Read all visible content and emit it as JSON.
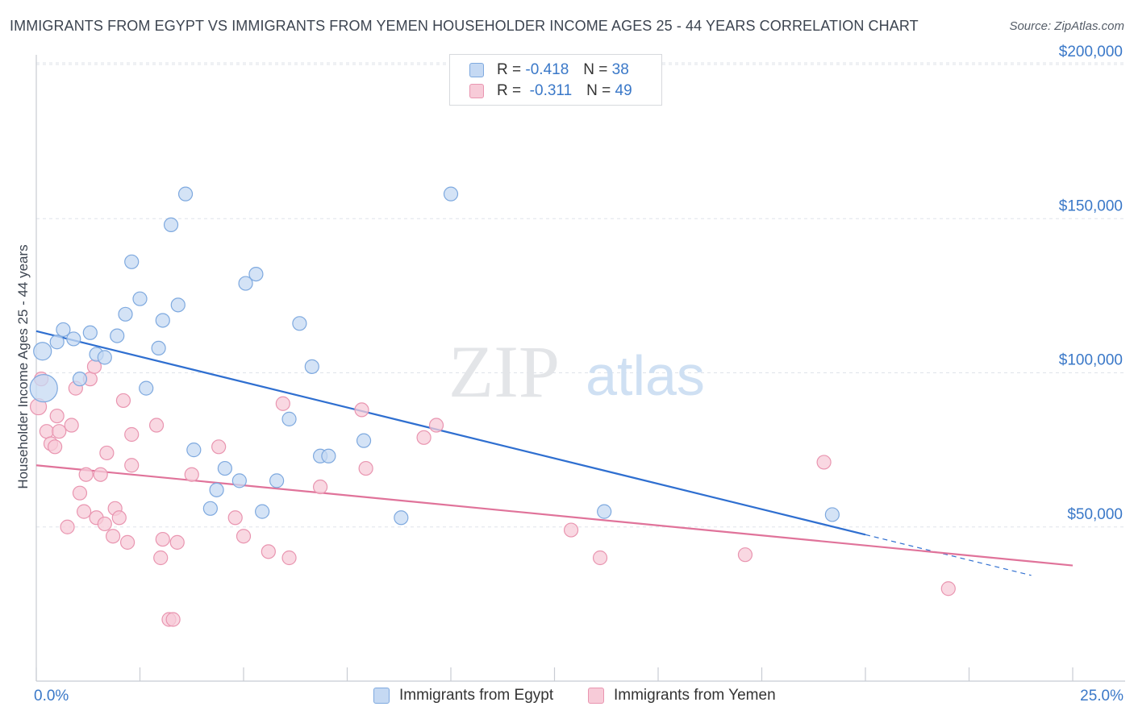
{
  "title": "IMMIGRANTS FROM EGYPT VS IMMIGRANTS FROM YEMEN HOUSEHOLDER INCOME AGES 25 - 44 YEARS CORRELATION CHART",
  "source": "Source: ZipAtlas.com",
  "watermark": {
    "zip": "ZIP",
    "atlas": "atlas"
  },
  "legend_top": [
    {
      "r_label": "R =",
      "r_value": "-0.418",
      "n_label": "N =",
      "n_value": "38"
    },
    {
      "r_label": "R =",
      "r_value": "-0.311",
      "n_label": "N =",
      "n_value": "49"
    }
  ],
  "legend_bottom": [
    {
      "label": "Immigrants from Egypt"
    },
    {
      "label": "Immigrants from Yemen"
    }
  ],
  "colors": {
    "egypt_fill": "#c5d9f3",
    "egypt_stroke": "#7ea9df",
    "egypt_line": "#2f6fd0",
    "yemen_fill": "#f7cbd8",
    "yemen_stroke": "#e995b0",
    "yemen_line": "#e0739a",
    "axis_text": "#3a78c8",
    "grid": "#dfe3ea"
  },
  "chart_data": {
    "type": "scatter",
    "title": "IMMIGRANTS FROM EGYPT VS IMMIGRANTS FROM YEMEN HOUSEHOLDER INCOME AGES 25 - 44 YEARS CORRELATION CHART",
    "xlabel": "",
    "ylabel": "Householder Income Ages 25 - 44 years",
    "xlim": [
      0,
      25
    ],
    "ylim": [
      0,
      200000
    ],
    "x_tick_labels": [
      "0.0%",
      "25.0%"
    ],
    "y_ticks": [
      50000,
      100000,
      150000,
      200000
    ],
    "y_tick_labels": [
      "$50,000",
      "$100,000",
      "$150,000",
      "$200,000"
    ],
    "grid": true,
    "legend_position": "top-center",
    "series": [
      {
        "name": "Immigrants from Egypt",
        "r": -0.418,
        "n": 38,
        "trend": {
          "x0": 0,
          "y0": 113500,
          "x1": 20,
          "y1": 47500,
          "dashed_to_x": 24
        },
        "points": [
          {
            "x": 0.15,
            "y": 107000
          },
          {
            "x": 0.18,
            "y": 95000
          },
          {
            "x": 0.5,
            "y": 110000
          },
          {
            "x": 0.65,
            "y": 114000
          },
          {
            "x": 0.9,
            "y": 111000
          },
          {
            "x": 1.05,
            "y": 98000
          },
          {
            "x": 1.3,
            "y": 113000
          },
          {
            "x": 1.45,
            "y": 106000
          },
          {
            "x": 1.65,
            "y": 105000
          },
          {
            "x": 1.95,
            "y": 112000
          },
          {
            "x": 2.15,
            "y": 119000
          },
          {
            "x": 2.3,
            "y": 136000
          },
          {
            "x": 2.5,
            "y": 124000
          },
          {
            "x": 2.65,
            "y": 95000
          },
          {
            "x": 2.95,
            "y": 108000
          },
          {
            "x": 3.05,
            "y": 117000
          },
          {
            "x": 3.25,
            "y": 148000
          },
          {
            "x": 3.42,
            "y": 122000
          },
          {
            "x": 3.6,
            "y": 158000
          },
          {
            "x": 3.8,
            "y": 75000
          },
          {
            "x": 4.2,
            "y": 56000
          },
          {
            "x": 4.35,
            "y": 62000
          },
          {
            "x": 4.55,
            "y": 69000
          },
          {
            "x": 4.9,
            "y": 65000
          },
          {
            "x": 5.05,
            "y": 129000
          },
          {
            "x": 5.3,
            "y": 132000
          },
          {
            "x": 5.45,
            "y": 55000
          },
          {
            "x": 5.8,
            "y": 65000
          },
          {
            "x": 6.1,
            "y": 85000
          },
          {
            "x": 6.35,
            "y": 116000
          },
          {
            "x": 6.65,
            "y": 102000
          },
          {
            "x": 6.85,
            "y": 73000
          },
          {
            "x": 7.05,
            "y": 73000
          },
          {
            "x": 7.9,
            "y": 78000
          },
          {
            "x": 8.8,
            "y": 53000
          },
          {
            "x": 10.0,
            "y": 158000
          },
          {
            "x": 13.7,
            "y": 55000
          },
          {
            "x": 19.2,
            "y": 54000
          }
        ]
      },
      {
        "name": "Immigrants from Yemen",
        "r": -0.311,
        "n": 49,
        "trend": {
          "x0": 0,
          "y0": 70000,
          "x1": 25,
          "y1": 37500
        },
        "points": [
          {
            "x": 0.05,
            "y": 89000
          },
          {
            "x": 0.12,
            "y": 98000
          },
          {
            "x": 0.25,
            "y": 81000
          },
          {
            "x": 0.35,
            "y": 77000
          },
          {
            "x": 0.45,
            "y": 76000
          },
          {
            "x": 0.5,
            "y": 86000
          },
          {
            "x": 0.55,
            "y": 81000
          },
          {
            "x": 0.75,
            "y": 50000
          },
          {
            "x": 0.85,
            "y": 83000
          },
          {
            "x": 0.95,
            "y": 95000
          },
          {
            "x": 1.05,
            "y": 61000
          },
          {
            "x": 1.15,
            "y": 55000
          },
          {
            "x": 1.2,
            "y": 67000
          },
          {
            "x": 1.3,
            "y": 98000
          },
          {
            "x": 1.4,
            "y": 102000
          },
          {
            "x": 1.45,
            "y": 53000
          },
          {
            "x": 1.55,
            "y": 67000
          },
          {
            "x": 1.65,
            "y": 51000
          },
          {
            "x": 1.7,
            "y": 74000
          },
          {
            "x": 1.85,
            "y": 47000
          },
          {
            "x": 1.9,
            "y": 56000
          },
          {
            "x": 2.0,
            "y": 53000
          },
          {
            "x": 2.1,
            "y": 91000
          },
          {
            "x": 2.2,
            "y": 45000
          },
          {
            "x": 2.3,
            "y": 80000
          },
          {
            "x": 2.3,
            "y": 70000
          },
          {
            "x": 2.9,
            "y": 83000
          },
          {
            "x": 3.0,
            "y": 40000
          },
          {
            "x": 3.05,
            "y": 46000
          },
          {
            "x": 3.2,
            "y": 20000
          },
          {
            "x": 3.3,
            "y": 20000
          },
          {
            "x": 3.4,
            "y": 45000
          },
          {
            "x": 3.75,
            "y": 67000
          },
          {
            "x": 4.4,
            "y": 76000
          },
          {
            "x": 4.8,
            "y": 53000
          },
          {
            "x": 5.0,
            "y": 47000
          },
          {
            "x": 5.6,
            "y": 42000
          },
          {
            "x": 5.95,
            "y": 90000
          },
          {
            "x": 6.1,
            "y": 40000
          },
          {
            "x": 6.85,
            "y": 63000
          },
          {
            "x": 7.85,
            "y": 88000
          },
          {
            "x": 7.95,
            "y": 69000
          },
          {
            "x": 9.35,
            "y": 79000
          },
          {
            "x": 9.65,
            "y": 83000
          },
          {
            "x": 12.9,
            "y": 49000
          },
          {
            "x": 13.6,
            "y": 40000
          },
          {
            "x": 17.1,
            "y": 41000
          },
          {
            "x": 19.0,
            "y": 71000
          },
          {
            "x": 22.0,
            "y": 30000
          }
        ]
      }
    ]
  }
}
